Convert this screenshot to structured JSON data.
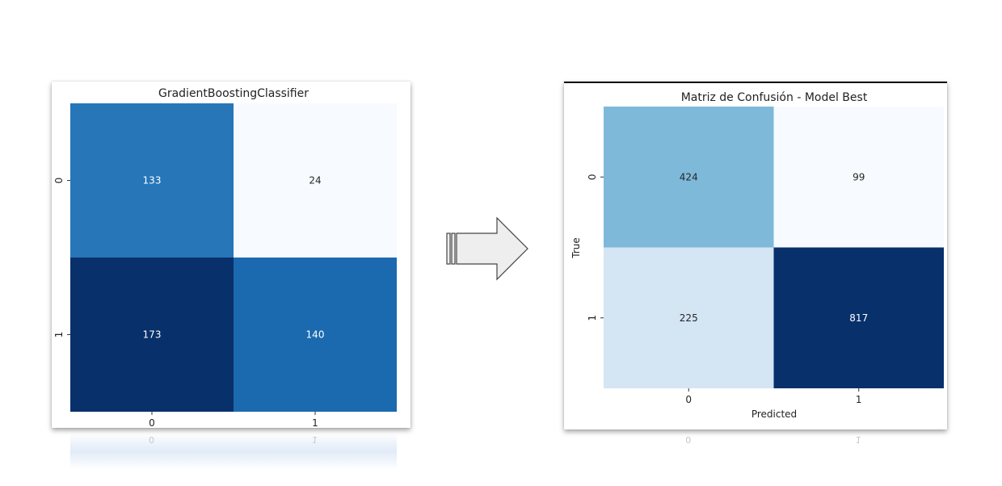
{
  "chart_data": [
    {
      "type": "heatmap",
      "title": "GradientBoostingClassifier",
      "xlabel": "",
      "ylabel": "",
      "x_categories": [
        "0",
        "1"
      ],
      "y_categories": [
        "0",
        "1"
      ],
      "values": [
        [
          133,
          24
        ],
        [
          173,
          140
        ]
      ],
      "colormap": "Blues",
      "colorbar": false,
      "grid": false
    },
    {
      "type": "heatmap",
      "title": "Matriz de Confusión - Model Best",
      "xlabel": "Predicted",
      "ylabel": "True",
      "x_categories": [
        "0",
        "1"
      ],
      "y_categories": [
        "0",
        "1"
      ],
      "values": [
        [
          424,
          99
        ],
        [
          225,
          817
        ]
      ],
      "colormap": "Blues",
      "colorbar": false,
      "grid": false
    }
  ],
  "arrow": {
    "icon": "right-arrow-icon",
    "fill": "#eeeeee",
    "stroke": "#444444"
  }
}
